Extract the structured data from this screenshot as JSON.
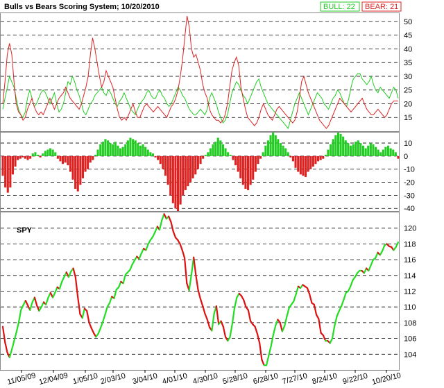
{
  "chart_data": [
    {
      "type": "line",
      "title": "Bulls vs Bears Scoring System;  10/20/2010",
      "legend": [
        {
          "label": "BULL: 22",
          "color": "#00c000"
        },
        {
          "label": "BEAR: 21",
          "color": "#e00000"
        }
      ],
      "legend_position": "top-right",
      "ylim": [
        10,
        53
      ],
      "yticks": [
        "15",
        "20",
        "25",
        "30",
        "35",
        "40",
        "45",
        "50"
      ],
      "grid": "horizontal dashed",
      "series": [
        {
          "name": "BULL",
          "color": "#22cc22",
          "values": [
            18,
            22,
            26,
            30,
            28,
            26,
            22,
            18,
            16,
            15,
            17,
            22,
            25,
            22,
            19,
            20,
            22,
            24,
            25,
            24,
            22,
            20,
            22,
            24,
            20,
            17,
            18,
            20,
            24,
            28,
            27,
            30,
            28,
            25,
            23,
            20,
            17,
            16,
            18,
            20,
            21,
            23,
            24,
            25,
            26,
            24,
            23,
            25,
            24,
            22,
            20,
            19,
            21,
            22,
            24,
            22,
            20,
            18,
            17,
            16,
            18,
            20,
            21,
            22,
            24,
            25,
            23,
            22,
            22,
            24,
            25,
            23,
            22,
            20,
            19,
            20,
            22,
            24,
            26,
            25,
            23,
            22,
            20,
            18,
            17,
            16,
            16,
            17,
            18,
            17,
            16,
            18,
            22,
            24,
            22,
            20,
            17,
            15,
            13,
            14,
            16,
            20,
            24,
            26,
            28,
            27,
            25,
            23,
            22,
            20,
            22,
            24,
            26,
            28,
            29,
            26,
            24,
            22,
            20,
            19,
            18,
            17,
            16,
            15,
            14,
            13,
            12,
            11,
            14,
            17,
            20,
            22,
            24,
            22,
            20,
            18,
            16,
            18,
            20,
            22,
            24,
            23,
            22,
            20,
            19,
            18,
            20,
            22,
            23,
            25,
            24,
            22,
            20,
            19,
            22,
            26,
            29,
            30,
            31,
            31,
            29,
            28,
            27,
            28,
            30,
            27,
            25,
            24,
            26,
            25,
            24,
            23,
            22,
            24,
            26,
            25,
            22
          ]
        },
        {
          "name": "BEAR",
          "color": "#dd2222",
          "values": [
            20,
            28,
            38,
            42,
            38,
            28,
            20,
            17,
            16,
            14,
            15,
            18,
            20,
            22,
            19,
            17,
            16,
            17,
            16,
            18,
            20,
            22,
            20,
            18,
            20,
            22,
            23,
            24,
            26,
            24,
            22,
            21,
            20,
            19,
            18,
            20,
            23,
            26,
            30,
            38,
            44,
            40,
            35,
            30,
            26,
            28,
            32,
            30,
            28,
            26,
            22,
            18,
            15,
            14,
            15,
            14,
            16,
            18,
            20,
            17,
            15,
            15,
            17,
            19,
            20,
            19,
            18,
            17,
            18,
            19,
            18,
            17,
            16,
            15,
            17,
            19,
            20,
            22,
            25,
            30,
            36,
            44,
            52,
            48,
            40,
            37,
            38,
            35,
            32,
            27,
            24,
            22,
            18,
            16,
            15,
            14,
            14,
            13,
            14,
            16,
            20,
            26,
            32,
            35,
            37,
            34,
            26,
            22,
            18,
            15,
            14,
            13,
            12,
            13,
            15,
            18,
            20,
            18,
            16,
            15,
            14,
            16,
            18,
            19,
            18,
            17,
            16,
            15,
            14,
            13,
            14,
            17,
            22,
            28,
            30,
            27,
            24,
            22,
            20,
            18,
            16,
            14,
            13,
            12,
            11,
            12,
            14,
            16,
            18,
            20,
            22,
            21,
            20,
            19,
            18,
            17,
            18,
            19,
            20,
            21,
            22,
            20,
            18,
            17,
            16,
            16,
            17,
            18,
            17,
            16,
            15,
            16,
            18,
            20,
            21,
            21,
            21
          ]
        }
      ]
    },
    {
      "type": "bar",
      "ylim": [
        -42,
        18
      ],
      "yticks": [
        "10",
        "0",
        "-10",
        "-20",
        "-30",
        "-40"
      ],
      "series": [
        {
          "name": "BULL-BEAR",
          "positive_color": "#22cc22",
          "negative_color": "#dd2222",
          "values": [
            -15,
            -24,
            -28,
            -24,
            -14,
            -8,
            -3,
            -2,
            -1,
            -2,
            -3,
            -2,
            2,
            3,
            1,
            -1,
            2,
            4,
            5,
            6,
            5,
            3,
            -2,
            -4,
            -6,
            -5,
            -7,
            -12,
            -18,
            -25,
            -27,
            -22,
            -17,
            -12,
            -10,
            -5,
            -3,
            1,
            5,
            9,
            11,
            13,
            12,
            10,
            9,
            11,
            8,
            6,
            7,
            9,
            12,
            14,
            13,
            12,
            10,
            8,
            9,
            7,
            5,
            3,
            2,
            -1,
            -3,
            -6,
            -10,
            -15,
            -22,
            -30,
            -36,
            -40,
            -42,
            -37,
            -30,
            -26,
            -23,
            -20,
            -17,
            -14,
            -10,
            -6,
            -2,
            1,
            3,
            6,
            9,
            11,
            14,
            12,
            9,
            6,
            3,
            1,
            -3,
            -7,
            -12,
            -17,
            -22,
            -25,
            -26,
            -22,
            -18,
            -12,
            -6,
            -2,
            3,
            8,
            12,
            16,
            18,
            16,
            13,
            10,
            8,
            6,
            3,
            -1,
            -4,
            -9,
            -12,
            -14,
            -15,
            -16,
            -12,
            -10,
            -8,
            -6,
            -4,
            -3,
            -2,
            1,
            5,
            9,
            13,
            16,
            18,
            17,
            15,
            12,
            10,
            8,
            9,
            11,
            12,
            10,
            8,
            6,
            8,
            10,
            9,
            7,
            5,
            3,
            5,
            7,
            8,
            6,
            5,
            3,
            -2
          ]
        }
      ]
    },
    {
      "type": "line",
      "series_label": "SPY",
      "ylim": [
        102,
        122
      ],
      "yticks": [
        "104",
        "106",
        "108",
        "110",
        "112",
        "114",
        "116",
        "118",
        "120"
      ],
      "x_tick_labels": [
        "11/05/09",
        "12/04/09",
        "1/05/10",
        "2/03/10",
        "3/04/10",
        "4/01/10",
        "4/30/10",
        "5/28/10",
        "6/28/10",
        "7/27/10",
        "8/24/10",
        "9/22/10",
        "10/20/10"
      ],
      "series": [
        {
          "name": "SPY",
          "up_color": "#22dd22",
          "down_color": "#dd1111",
          "values": [
            107.5,
            105.5,
            104.2,
            103.6,
            104.6,
            105.7,
            106.8,
            108.0,
            109.6,
            110.2,
            110.8,
            110.2,
            109.6,
            110.6,
            111.2,
            110.2,
            109.5,
            110.0,
            110.6,
            110.3,
            111.2,
            111.8,
            111.2,
            111.8,
            112.5,
            112.3,
            113.2,
            113.8,
            114.4,
            113.8,
            114.5,
            114.9,
            113.8,
            111.3,
            109.1,
            108.6,
            109.8,
            109.5,
            108.0,
            107.3,
            106.7,
            106.2,
            106.6,
            107.3,
            108.1,
            109.0,
            110.0,
            110.5,
            111.3,
            111.1,
            112.2,
            112.5,
            113.2,
            113.0,
            114.1,
            114.4,
            114.7,
            115.4,
            115.9,
            116.4,
            116.1,
            116.8,
            117.4,
            117.2,
            118.0,
            118.5,
            118.9,
            119.5,
            120.2,
            119.8,
            121.0,
            121.8,
            121.2,
            121.5,
            120.8,
            119.6,
            118.8,
            118.5,
            118.0,
            117.2,
            116.2,
            113.0,
            112.1,
            114.1,
            116.3,
            114.0,
            112.1,
            111.0,
            110.1,
            109.1,
            108.4,
            107.4,
            107.0,
            109.2,
            110.1,
            107.8,
            108.2,
            107.5,
            106.2,
            105.7,
            106.2,
            107.9,
            109.9,
            111.2,
            111.7,
            111.4,
            110.9,
            110.0,
            109.6,
            108.2,
            107.8,
            107.5,
            106.6,
            105.4,
            103.3,
            102.6,
            102.6,
            103.8,
            105.0,
            106.4,
            107.6,
            108.4,
            108.0,
            106.9,
            107.6,
            108.8,
            109.9,
            110.3,
            110.7,
            111.6,
            112.6,
            112.4,
            112.8,
            112.6,
            112.4,
            111.6,
            110.5,
            110.3,
            109.0,
            108.5,
            106.7,
            106.4,
            105.7,
            105.7,
            105.4,
            106.0,
            107.6,
            108.8,
            109.5,
            110.1,
            110.9,
            111.8,
            112.0,
            112.6,
            113.4,
            113.8,
            114.3,
            114.6,
            114.6,
            114.3,
            114.9,
            114.6,
            115.3,
            116.0,
            116.2,
            116.9,
            116.6,
            117.1,
            117.8,
            118.0,
            117.7,
            117.6,
            117.2,
            117.6,
            118.2
          ]
        }
      ]
    }
  ]
}
